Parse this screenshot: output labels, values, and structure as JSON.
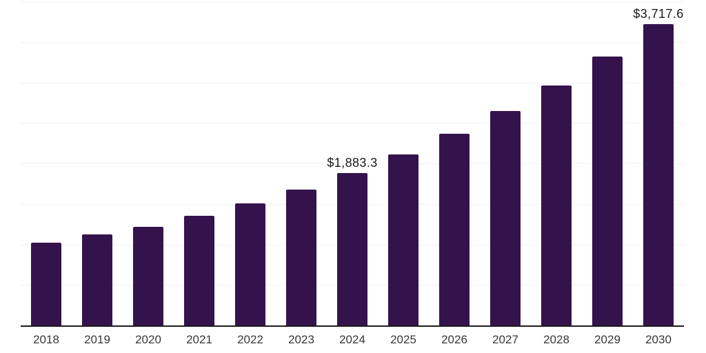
{
  "chart_data": {
    "type": "bar",
    "title": "",
    "xlabel": "",
    "ylabel": "",
    "categories": [
      "2018",
      "2019",
      "2020",
      "2021",
      "2022",
      "2023",
      "2024",
      "2025",
      "2026",
      "2027",
      "2028",
      "2029",
      "2030"
    ],
    "values": [
      1020,
      1120,
      1221,
      1357,
      1508,
      1680,
      1883.3,
      2109.3,
      2362.4,
      2645.9,
      2963.4,
      3318.9,
      3717.6
    ],
    "bar_labels": [
      "",
      "",
      "",
      "",
      "",
      "",
      "$1,883.3",
      "",
      "",
      "",
      "",
      "",
      "$3,717.6"
    ],
    "ylim": [
      0,
      4000
    ],
    "grid_step": 500,
    "grid": "horizontal",
    "legend": "none",
    "colors": {
      "bar": "#34134D",
      "axis_line": "#1C1C1C",
      "gridline": "#F2F2F2",
      "data_label": "#1A1A1A",
      "tick_label": "#383838",
      "background": "#FFFFFF"
    }
  }
}
